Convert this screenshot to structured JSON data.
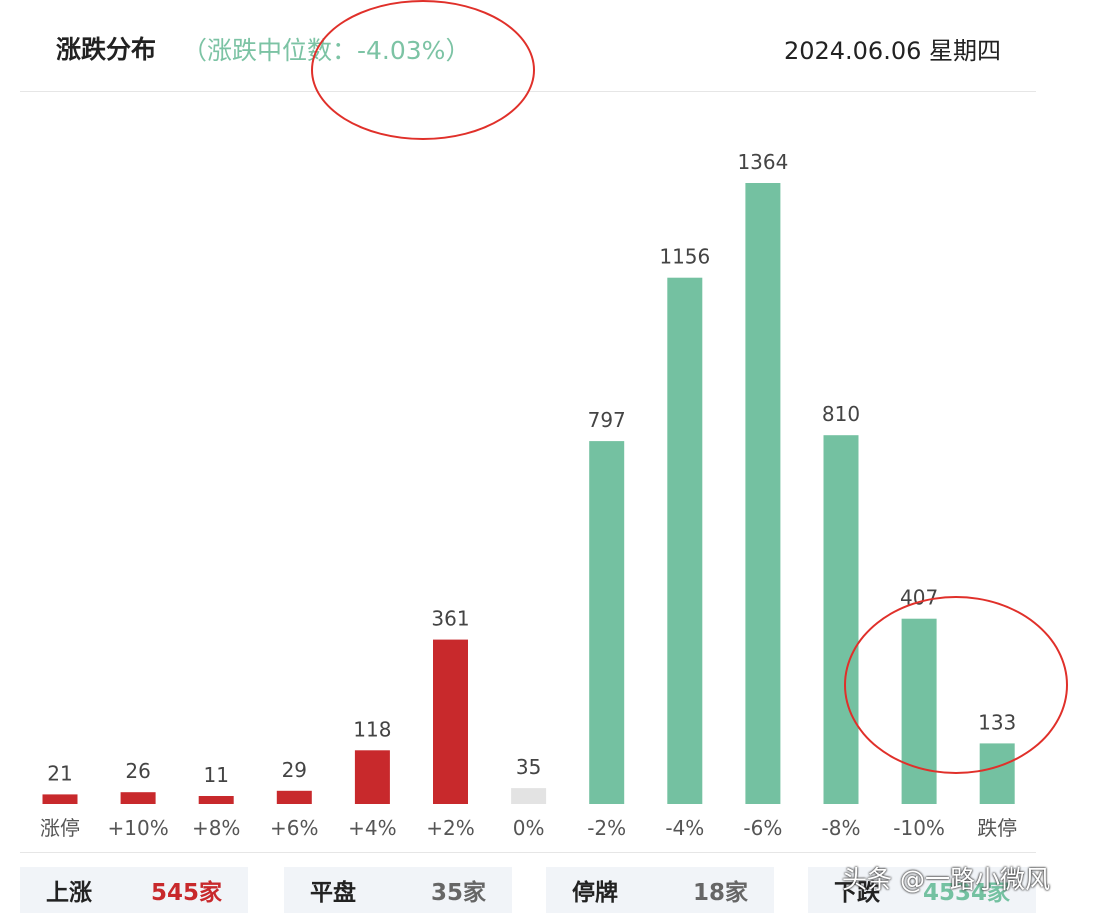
{
  "header": {
    "title": "涨跌分布",
    "subtitle": "（涨跌中位数：-4.03%）",
    "date": "2024.06.06 星期四"
  },
  "chart_data": {
    "type": "bar",
    "categories": [
      "涨停",
      "+10%",
      "+8%",
      "+6%",
      "+4%",
      "+2%",
      "0%",
      "-2%",
      "-4%",
      "-6%",
      "-8%",
      "-10%",
      "跌停"
    ],
    "values": [
      21,
      26,
      11,
      29,
      118,
      361,
      35,
      797,
      1156,
      1364,
      810,
      407,
      133
    ],
    "bar_colors": [
      "#c8292c",
      "#c8292c",
      "#c8292c",
      "#c8292c",
      "#c8292c",
      "#c8292c",
      "#e3e3e3",
      "#74c1a1",
      "#74c1a1",
      "#74c1a1",
      "#74c1a1",
      "#74c1a1",
      "#74c1a1"
    ],
    "data_labels": true,
    "grid": false,
    "ylim": [
      0,
      1364
    ]
  },
  "summary": [
    {
      "label": "上涨",
      "value": "545家",
      "color": "#c8292c"
    },
    {
      "label": "平盘",
      "value": "35家",
      "color": "#666666"
    },
    {
      "label": "停牌",
      "value": "18家",
      "color": "#666666"
    },
    {
      "label": "下跌",
      "value": "4534家",
      "color": "#74c1a1"
    }
  ],
  "watermark": "头条 @一路小微风",
  "colors": {
    "up": "#c8292c",
    "flat": "#e3e3e3",
    "down": "#74c1a1",
    "annotation": "#e0302a"
  }
}
